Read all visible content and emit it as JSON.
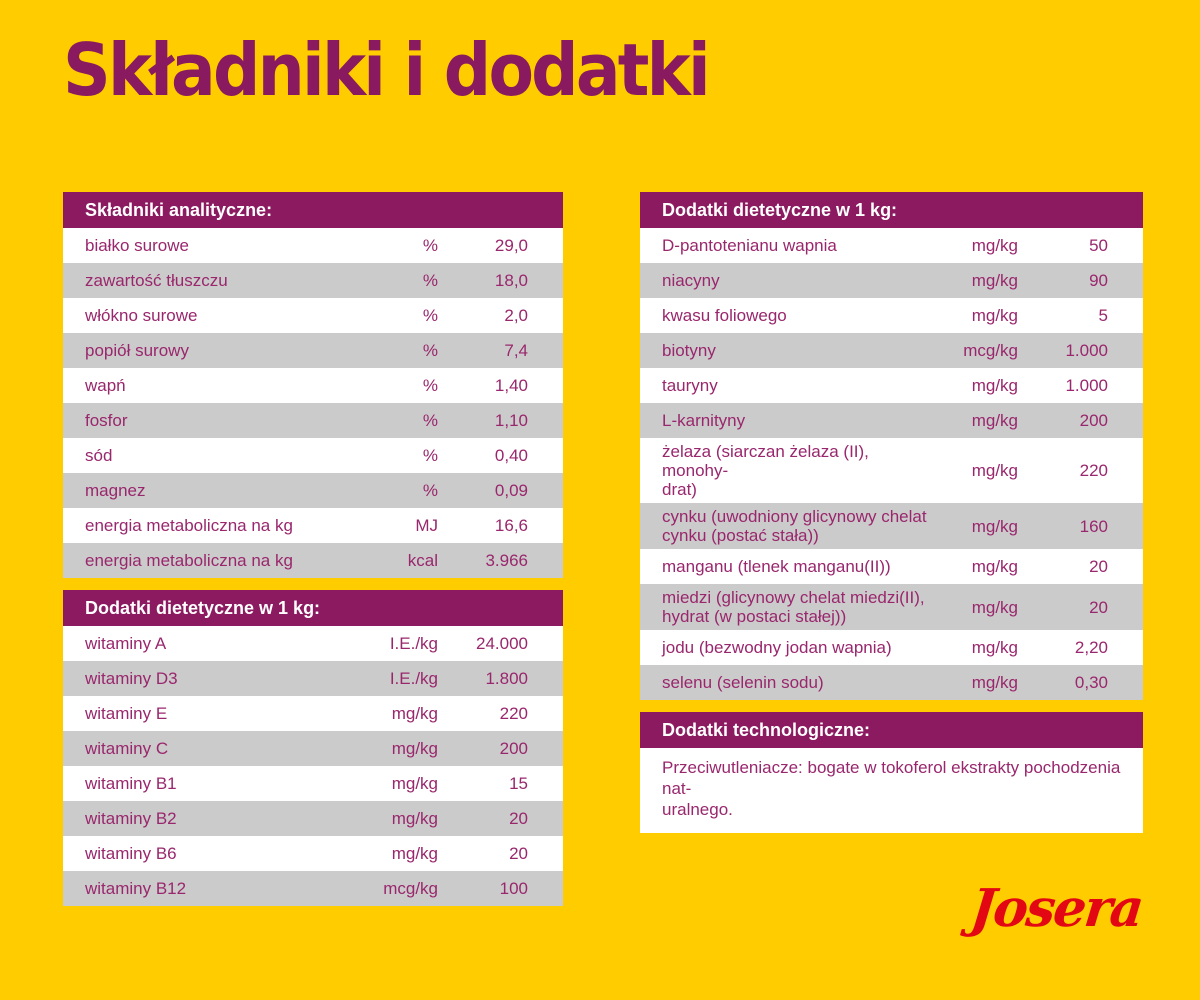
{
  "page": {
    "title": "Składniki i dodatki",
    "logo_text": "Josera",
    "colors": {
      "background": "#FFCC00",
      "header_bar": "#8C1A60",
      "title_text": "#8A1A5F",
      "row_text": "#99276D",
      "row_alt_gray": "#CCCBCB",
      "row_white": "#FFFFFF",
      "logo_red": "#E30613"
    }
  },
  "tables": {
    "analytical": {
      "title": "Składniki analityczne:",
      "rows": [
        {
          "name": "białko surowe",
          "unit": "%",
          "value": "29,0"
        },
        {
          "name": "zawartość tłuszczu",
          "unit": "%",
          "value": "18,0"
        },
        {
          "name": "włókno surowe",
          "unit": "%",
          "value": "2,0"
        },
        {
          "name": "popiół surowy",
          "unit": "%",
          "value": "7,4"
        },
        {
          "name": "wapń",
          "unit": "%",
          "value": "1,40"
        },
        {
          "name": "fosfor",
          "unit": "%",
          "value": "1,10"
        },
        {
          "name": "sód",
          "unit": "%",
          "value": "0,40"
        },
        {
          "name": "magnez",
          "unit": "%",
          "value": "0,09"
        },
        {
          "name": "energia metaboliczna na kg",
          "unit": "MJ",
          "value": "16,6"
        },
        {
          "name": "energia metaboliczna na kg",
          "unit": "kcal",
          "value": "3.966"
        }
      ]
    },
    "dietary_left": {
      "title": "Dodatki dietetyczne w 1 kg:",
      "rows": [
        {
          "name": "witaminy A",
          "unit": "I.E./kg",
          "value": "24.000"
        },
        {
          "name": "witaminy D3",
          "unit": "I.E./kg",
          "value": "1.800"
        },
        {
          "name": "witaminy E",
          "unit": "mg/kg",
          "value": "220"
        },
        {
          "name": "witaminy C",
          "unit": "mg/kg",
          "value": "200"
        },
        {
          "name": "witaminy B1",
          "unit": "mg/kg",
          "value": "15"
        },
        {
          "name": "witaminy B2",
          "unit": "mg/kg",
          "value": "20"
        },
        {
          "name": "witaminy B6",
          "unit": "mg/kg",
          "value": "20"
        },
        {
          "name": "witaminy B12",
          "unit": "mcg/kg",
          "value": "100"
        }
      ]
    },
    "dietary_right": {
      "title": "Dodatki dietetyczne w 1 kg:",
      "rows": [
        {
          "name": "D-pantotenianu wapnia",
          "unit": "mg/kg",
          "value": "50"
        },
        {
          "name": "niacyny",
          "unit": "mg/kg",
          "value": "90"
        },
        {
          "name": "kwasu foliowego",
          "unit": "mg/kg",
          "value": "5"
        },
        {
          "name": "biotyny",
          "unit": "mcg/kg",
          "value": "1.000"
        },
        {
          "name": "tauryny",
          "unit": "mg/kg",
          "value": "1.000"
        },
        {
          "name": "L-karnityny",
          "unit": "mg/kg",
          "value": "200"
        },
        {
          "name": "żelaza (siarczan żelaza (II), monohy-\ndrat)",
          "unit": "mg/kg",
          "value": "220"
        },
        {
          "name": "cynku (uwodniony glicynowy chelat\ncynku (postać stała))",
          "unit": "mg/kg",
          "value": "160"
        },
        {
          "name": "manganu (tlenek manganu(II))",
          "unit": "mg/kg",
          "value": "20"
        },
        {
          "name": "miedzi (glicynowy chelat miedzi(II),\nhydrat (w postaci stałej))",
          "unit": "mg/kg",
          "value": "20"
        },
        {
          "name": "jodu (bezwodny jodan wapnia)",
          "unit": "mg/kg",
          "value": "2,20"
        },
        {
          "name": "selenu (selenin sodu)",
          "unit": "mg/kg",
          "value": "0,30"
        }
      ]
    },
    "technological": {
      "title": "Dodatki technologiczne:",
      "text": "Przeciwutleniacze: bogate w tokoferol ekstrakty pochodzenia nat-\nuralnego."
    }
  }
}
